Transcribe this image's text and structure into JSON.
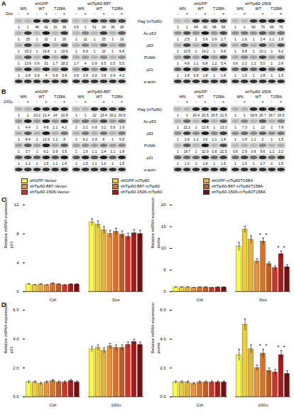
{
  "figure": {
    "lanes": {
      "constructs": [
        "WN",
        "WT",
        "T158A"
      ],
      "signs": [
        "-",
        "+"
      ]
    },
    "panels": [
      {
        "letter": "A",
        "treatment": "Dox",
        "row_labels": [
          "Flag (mTip60)",
          "Ac-p53",
          "p53",
          "PUMA",
          "p21",
          "α-actin"
        ],
        "blots": [
          {
            "groups": [
              "shGFP",
              "shTip60-887"
            ],
            "quantification": [
              [
                "1",
                "1",
                "48",
                "41",
                "31",
                "36",
                "0.5",
                "1",
                "51",
                "34",
                "36",
                "38"
              ],
              [
                "1",
                "25",
                "1",
                "32",
                "1",
                "26",
                "1",
                "11",
                "1",
                "25",
                "1",
                "19"
              ],
              [
                "1",
                "15.3",
                "1",
                "19.8",
                "1",
                "13.6",
                "1",
                "6.9",
                "1",
                "10",
                "1",
                "6.8"
              ],
              [
                "1",
                "13.6",
                "0.6",
                "21",
                "1.7",
                "18.5",
                "1.7",
                "4",
                "0.9",
                "6.5",
                "0.5",
                "5.5"
              ],
              [
                "1",
                "3.8",
                "0.9",
                "4",
                "0.9",
                "3.9",
                "0.9",
                "3.9",
                "0.9",
                "3.9",
                "0.9",
                "4.2"
              ]
            ]
          },
          {
            "groups": [
              "shGFP",
              "shTip60-1506"
            ],
            "quantification": [
              [
                "1",
                "1",
                "64",
                "60",
                "58",
                "56",
                "1",
                "1",
                "60",
                "70",
                "66",
                "75"
              ],
              [
                "1",
                "2.5",
                "1",
                "3.9",
                "0.9",
                "2.7",
                "1",
                "1.6",
                "1",
                "2.4",
                "1.1",
                "1.8"
              ],
              [
                "1",
                "10.5",
                "1",
                "14.2",
                "1",
                "9.8",
                "1",
                "6.8",
                "1",
                "10.1",
                "1",
                "9.2"
              ],
              [
                "1",
                "4.8",
                "1.1",
                "6.8",
                "1.2",
                "5.4",
                "0.6",
                "2.2",
                "1.1",
                "5.0",
                "1",
                "2.6"
              ],
              [
                "1",
                "1.8",
                "0.8",
                "1.8",
                "1",
                "1.8",
                "1",
                "1.5",
                "1",
                "1.8",
                "1",
                "1.5"
              ]
            ]
          }
        ]
      },
      {
        "letter": "B",
        "treatment": "10Gy",
        "row_labels": [
          "Flag (mTip60)",
          "Ac-p53",
          "p53",
          "PUMA",
          "p21",
          "α-actin"
        ],
        "blots": [
          {
            "groups": [
              "shGFP",
              "shTip60-887"
            ],
            "quantification": [
              [
                "1",
                "1",
                "23.2",
                "21.4",
                "24",
                "22.8",
                "1",
                "1",
                "22",
                "23.4",
                "20.2",
                "20.6"
              ],
              [
                "1",
                "4.4",
                "1",
                "4.6",
                "1.1",
                "4.2",
                "1",
                "2.1",
                "0.9",
                "3.2",
                "0.9",
                "1.9"
              ],
              [
                "1",
                "8.4",
                "1",
                "13.9",
                "1.1",
                "6",
                "1",
                "6.1",
                "0.9",
                "6",
                "1",
                "5.5"
              ],
              [
                "1",
                "3.7",
                "1",
                "6.1",
                "0.9",
                "3.5",
                "1",
                "1.6",
                "1.1",
                "2.4",
                "1.1",
                "1.8"
              ],
              [
                "1",
                "1.3",
                "1",
                "1.5",
                "1.1",
                "1.6",
                "1",
                "1.5",
                "1.1",
                "1.6",
                "1",
                "1.5"
              ]
            ]
          },
          {
            "groups": [
              "shGFP",
              "shTip60-1506"
            ],
            "quantification": [
              [
                "1",
                "1",
                "20.4",
                "20.5",
                "20.5",
                "21.5",
                "1",
                "1",
                "19.6",
                "20.7",
                "19.7",
                "20.5"
              ],
              [
                "1",
                "11.2",
                "1",
                "22.8",
                "1",
                "13.3",
                "1",
                "7.3",
                "1",
                "13",
                "1",
                "7.8"
              ],
              [
                "1",
                "2.8",
                "1.1",
                "3.6",
                "1.1",
                "2.8",
                "1",
                "1.8",
                "1.1",
                "2",
                "1",
                "1.5"
              ],
              [
                "1",
                "19.7",
                "1",
                "32.9",
                "0.8",
                "22.5",
                "0.6",
                "2.5",
                "0.6",
                "9.6",
                "1.1",
                "2.2"
              ],
              [
                "1",
                "1.0",
                "1",
                "1.9",
                "1",
                "1.5",
                "1",
                "1.5",
                "1",
                "1.7",
                "1",
                "1.5"
              ]
            ]
          }
        ]
      }
    ]
  },
  "chart_data": [
    {
      "type": "bar",
      "panel": "C",
      "title": "p21",
      "ylabel": "Relative mRNA expression",
      "categories": [
        "Ctrl",
        "Dox"
      ],
      "ylim": [
        0,
        12
      ],
      "yticks": [
        0,
        4,
        8,
        12
      ],
      "series": [
        {
          "name": "shGFP-Vector",
          "color": "#ffff33",
          "values": [
            1.0,
            9.6
          ],
          "errors": [
            0.1,
            0.5
          ]
        },
        {
          "name": "shGFP-mTip60",
          "color": "#f0d020",
          "values": [
            0.9,
            9.3
          ],
          "errors": [
            0.1,
            0.5
          ]
        },
        {
          "name": "shGFP-mTip60T158A",
          "color": "#e8b030",
          "values": [
            1.0,
            8.5
          ],
          "errors": [
            0.1,
            0.5
          ]
        },
        {
          "name": "shTip60-887-Vector",
          "color": "#f0902a",
          "values": [
            0.9,
            8.0
          ],
          "errors": [
            0.1,
            0.5
          ]
        },
        {
          "name": "shTip60-887-mTip60",
          "color": "#e0701e",
          "values": [
            1.1,
            8.3
          ],
          "errors": [
            0.1,
            0.5
          ]
        },
        {
          "name": "shTip60-887-mTip60T158A",
          "color": "#c85a1a",
          "values": [
            1.0,
            7.9
          ],
          "errors": [
            0.1,
            0.5
          ]
        },
        {
          "name": "shTip60-1506-Vector",
          "color": "#d83020",
          "values": [
            0.9,
            7.6
          ],
          "errors": [
            0.1,
            0.5
          ]
        },
        {
          "name": "shTip60-1506-mTip60",
          "color": "#b01818",
          "values": [
            1.0,
            8.1
          ],
          "errors": [
            0.1,
            0.5
          ]
        },
        {
          "name": "shTip60-1506-mTip60T158A",
          "color": "#7a0c10",
          "values": [
            1.0,
            8.0
          ],
          "errors": [
            0.1,
            0.5
          ]
        }
      ]
    },
    {
      "type": "bar",
      "title": "puma",
      "ylabel": "Relative mRNA expression",
      "legend": "top",
      "categories": [
        "Ctrl",
        "Dox"
      ],
      "ylim": [
        0,
        20
      ],
      "yticks": [
        0,
        5,
        10,
        15,
        20
      ],
      "series": [
        {
          "name": "shGFP-Vector",
          "color": "#ffff33",
          "values": [
            1.0,
            10.4
          ],
          "errors": [
            0.1,
            1.0
          ]
        },
        {
          "name": "shGFP-mTip60",
          "color": "#f0d020",
          "values": [
            1.0,
            14.3
          ],
          "errors": [
            0.1,
            0.8
          ]
        },
        {
          "name": "shGFP-mTip60T158A",
          "color": "#e8b030",
          "values": [
            1.0,
            12.0
          ],
          "errors": [
            0.1,
            0.9
          ]
        },
        {
          "name": "shTip60-887-Vector",
          "color": "#f0902a",
          "values": [
            0.9,
            7.0
          ],
          "errors": [
            0.1,
            0.6
          ]
        },
        {
          "name": "shTip60-887-mTip60",
          "color": "#e0701e",
          "values": [
            1.0,
            11.6
          ],
          "errors": [
            0.1,
            0.8
          ]
        },
        {
          "name": "shTip60-887-mTip60T158A",
          "color": "#c85a1a",
          "values": [
            1.0,
            6.4
          ],
          "errors": [
            0.1,
            0.5
          ]
        },
        {
          "name": "shTip60-1506-Vector",
          "color": "#d83020",
          "values": [
            0.9,
            5.5
          ],
          "errors": [
            0.1,
            0.5
          ]
        },
        {
          "name": "shTip60-1506-mTip60",
          "color": "#b01818",
          "values": [
            1.0,
            8.7
          ],
          "errors": [
            0.1,
            0.7
          ]
        },
        {
          "name": "shTip60-1506-mTip60T158A",
          "color": "#7a0c10",
          "values": [
            1.0,
            5.7
          ],
          "errors": [
            0.1,
            0.5
          ]
        }
      ],
      "annotations": [
        {
          "text": "*",
          "category": "Dox",
          "between": [
            "shTip60-887-Vector",
            "shTip60-887-mTip60"
          ]
        },
        {
          "text": "*",
          "category": "Dox",
          "between": [
            "shTip60-887-mTip60",
            "shTip60-887-mTip60T158A"
          ]
        },
        {
          "text": "*",
          "category": "Dox",
          "between": [
            "shTip60-1506-Vector",
            "shTip60-1506-mTip60"
          ]
        },
        {
          "text": "*",
          "category": "Dox",
          "between": [
            "shTip60-1506-mTip60",
            "shTip60-1506-mTip60T158A"
          ]
        }
      ]
    },
    {
      "type": "bar",
      "panel": "D",
      "title": "p21",
      "ylabel": "Relative mRNA expression",
      "categories": [
        "Ctrl",
        "10Gy"
      ],
      "ylim": [
        0,
        6
      ],
      "yticks": [
        0,
        2,
        4,
        6
      ],
      "series": [
        {
          "name": "shGFP-Vector",
          "color": "#ffff33",
          "values": [
            1.0,
            3.3
          ],
          "errors": [
            0.1,
            0.2
          ]
        },
        {
          "name": "shGFP-mTip60",
          "color": "#f0d020",
          "values": [
            1.0,
            3.4
          ],
          "errors": [
            0.1,
            0.2
          ]
        },
        {
          "name": "shGFP-mTip60T158A",
          "color": "#e8b030",
          "values": [
            0.9,
            3.2
          ],
          "errors": [
            0.1,
            0.2
          ]
        },
        {
          "name": "shTip60-887-Vector",
          "color": "#f0902a",
          "values": [
            1.0,
            3.5
          ],
          "errors": [
            0.1,
            0.2
          ]
        },
        {
          "name": "shTip60-887-mTip60",
          "color": "#e0701e",
          "values": [
            1.1,
            3.4
          ],
          "errors": [
            0.1,
            0.2
          ]
        },
        {
          "name": "shTip60-887-mTip60T158A",
          "color": "#c85a1a",
          "values": [
            1.0,
            3.4
          ],
          "errors": [
            0.1,
            0.2
          ]
        },
        {
          "name": "shTip60-1506-Vector",
          "color": "#d83020",
          "values": [
            1.0,
            3.6
          ],
          "errors": [
            0.1,
            0.2
          ]
        },
        {
          "name": "shTip60-1506-mTip60",
          "color": "#b01818",
          "values": [
            1.1,
            3.8
          ],
          "errors": [
            0.1,
            0.2
          ]
        },
        {
          "name": "shTip60-1506-mTip60T158A",
          "color": "#7a0c10",
          "values": [
            1.0,
            3.6
          ],
          "errors": [
            0.1,
            0.2
          ]
        }
      ]
    },
    {
      "type": "bar",
      "title": "puma",
      "ylabel": "Relative mRNA expression",
      "categories": [
        "Ctrl",
        "10Gy"
      ],
      "ylim": [
        0,
        6
      ],
      "yticks": [
        0,
        2,
        4,
        6
      ],
      "series": [
        {
          "name": "shGFP-Vector",
          "color": "#ffff33",
          "values": [
            1.0,
            2.9
          ],
          "errors": [
            0.1,
            0.4
          ]
        },
        {
          "name": "shGFP-mTip60",
          "color": "#f0d020",
          "values": [
            1.0,
            5.0
          ],
          "errors": [
            0.1,
            0.4
          ]
        },
        {
          "name": "shGFP-mTip60T158A",
          "color": "#e8b030",
          "values": [
            1.0,
            3.3
          ],
          "errors": [
            0.1,
            0.3
          ]
        },
        {
          "name": "shTip60-887-Vector",
          "color": "#f0902a",
          "values": [
            0.9,
            2.0
          ],
          "errors": [
            0.1,
            0.2
          ]
        },
        {
          "name": "shTip60-887-mTip60",
          "color": "#e0701e",
          "values": [
            1.0,
            3.0
          ],
          "errors": [
            0.1,
            0.3
          ]
        },
        {
          "name": "shTip60-887-mTip60T158A",
          "color": "#c85a1a",
          "values": [
            1.0,
            1.8
          ],
          "errors": [
            0.1,
            0.2
          ]
        },
        {
          "name": "shTip60-1506-Vector",
          "color": "#d83020",
          "values": [
            1.0,
            1.7
          ],
          "errors": [
            0.1,
            0.2
          ]
        },
        {
          "name": "shTip60-1506-mTip60",
          "color": "#b01818",
          "values": [
            1.0,
            2.9
          ],
          "errors": [
            0.1,
            0.3
          ]
        },
        {
          "name": "shTip60-1506-mTip60T158A",
          "color": "#7a0c10",
          "values": [
            1.0,
            1.6
          ],
          "errors": [
            0.1,
            0.2
          ]
        }
      ],
      "annotations": [
        {
          "text": "*",
          "category": "10Gy",
          "between": [
            "shTip60-887-Vector",
            "shTip60-887-mTip60"
          ]
        },
        {
          "text": "*",
          "category": "10Gy",
          "between": [
            "shTip60-887-mTip60",
            "shTip60-887-mTip60T158A"
          ]
        },
        {
          "text": "*",
          "category": "10Gy",
          "between": [
            "shTip60-1506-Vector",
            "shTip60-1506-mTip60"
          ]
        },
        {
          "text": "*",
          "category": "10Gy",
          "between": [
            "shTip60-1506-mTip60",
            "shTip60-1506-mTip60T158A"
          ]
        }
      ]
    }
  ]
}
